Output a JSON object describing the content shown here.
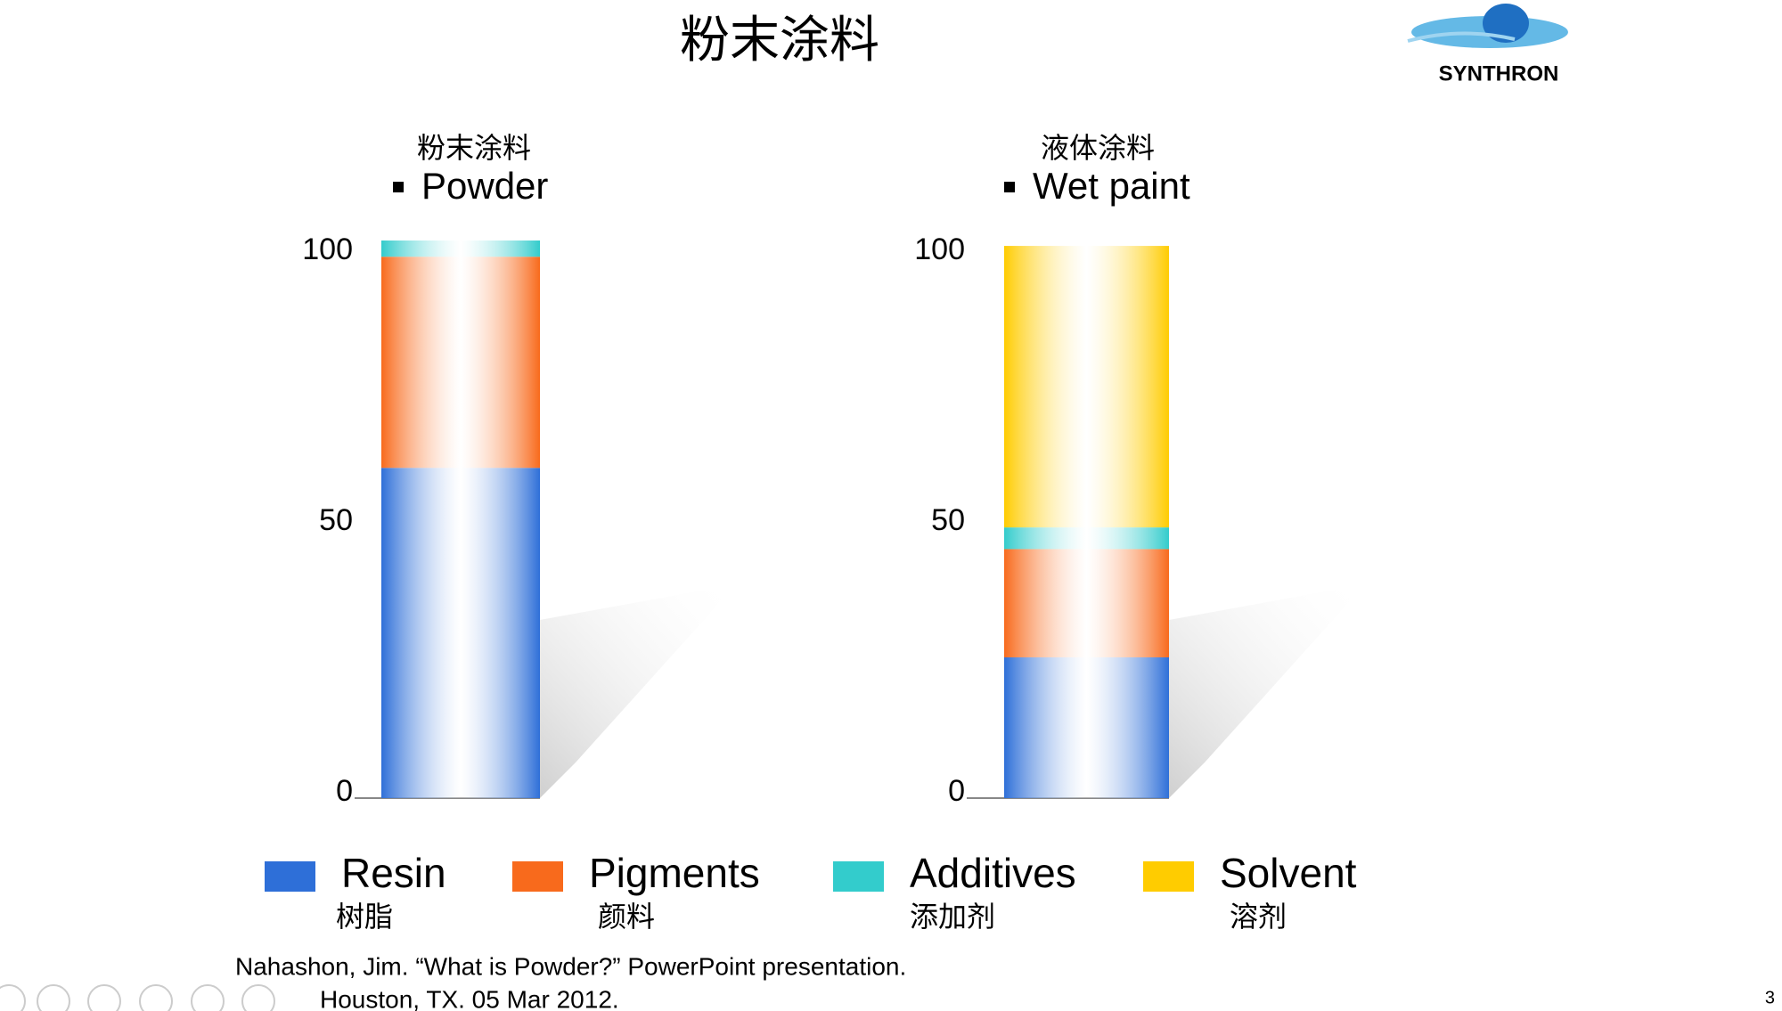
{
  "title": "粉末涂料",
  "logo": "SYNTHRON",
  "chart_data": [
    {
      "type": "bar",
      "title": "粉末涂料",
      "subtitle": "Powder",
      "ylim": [
        0,
        103
      ],
      "yticks": [
        0,
        50,
        100
      ],
      "series": [
        {
          "values": [
            61
          ]
        },
        {
          "values": [
            39
          ]
        },
        {
          "values": [
            3
          ]
        }
      ]
    },
    {
      "type": "bar",
      "title": "液体涂料",
      "subtitle": "Wet paint",
      "ylim": [
        0,
        103
      ],
      "yticks": [
        0,
        50,
        100
      ],
      "series": [
        {
          "values": [
            26
          ]
        },
        {
          "values": [
            20
          ]
        },
        {
          "values": [
            4
          ]
        },
        {
          "values": [
            52
          ]
        }
      ]
    }
  ],
  "legend": [
    {
      "name": "Resin",
      "name_zh": "树脂",
      "color": "#2e6fd8"
    },
    {
      "name": "Pigments",
      "name_zh": "颜料",
      "color": "#f86a1c"
    },
    {
      "name": "Additives",
      "name_zh": "添加剂",
      "color": "#33cccc"
    },
    {
      "name": "Solvent",
      "name_zh": "溶剂",
      "color": "#ffcc00"
    }
  ],
  "citation": [
    "Nahashon, Jim.  “What is Powder?” PowerPoint presentation.",
    "Houston, TX. 05 Mar 2012."
  ],
  "page_number": "3"
}
